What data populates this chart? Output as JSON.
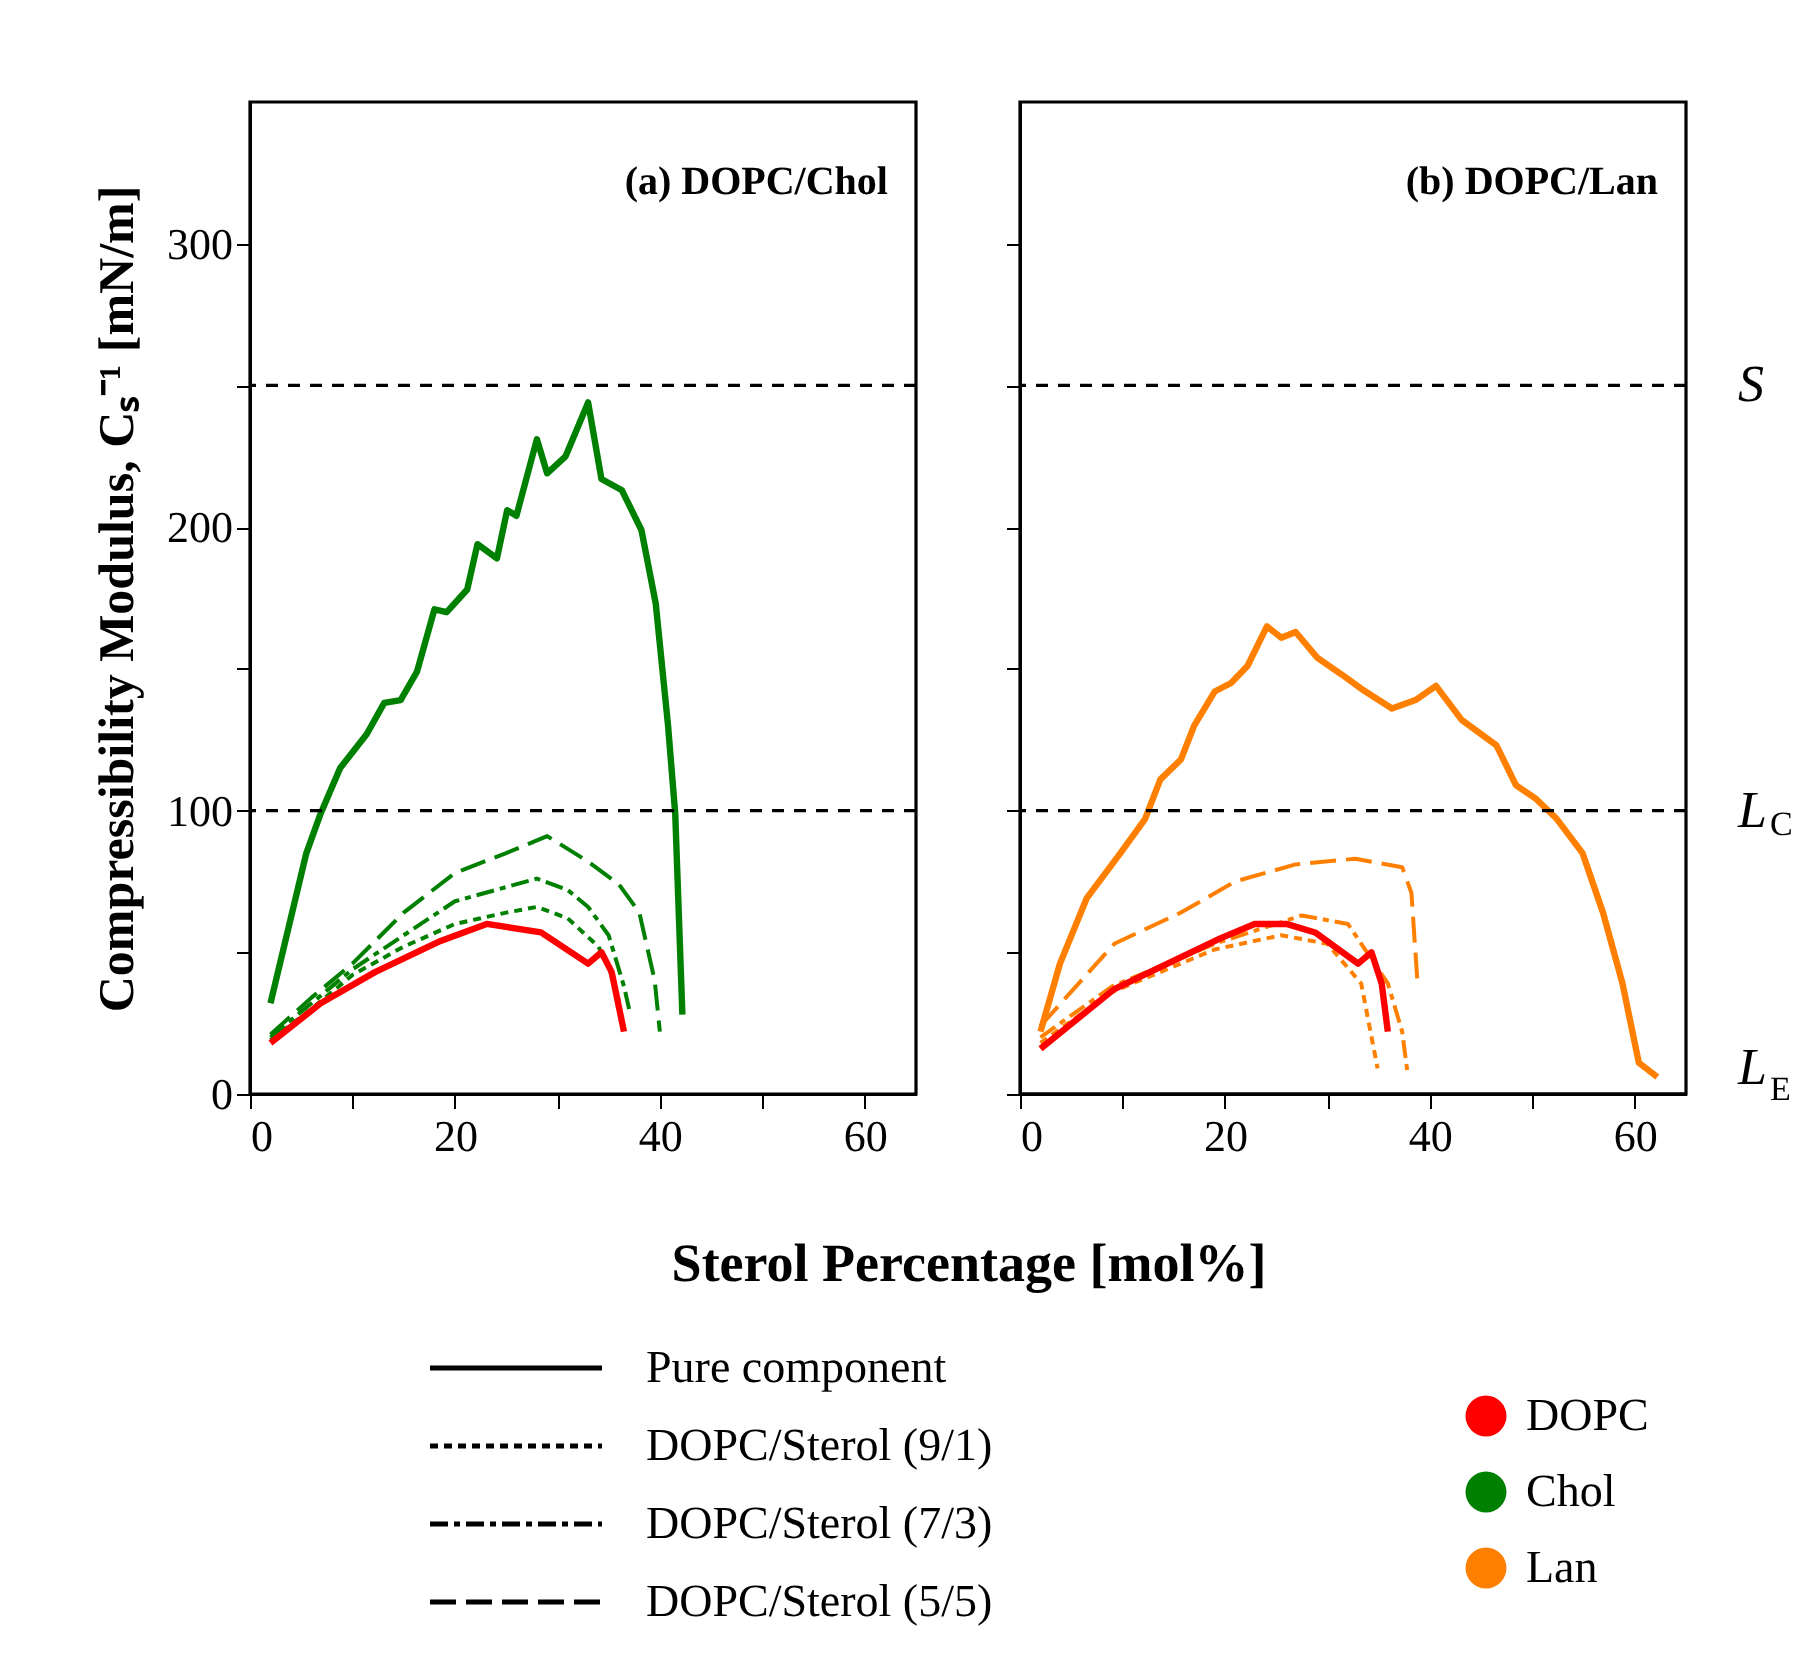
{
  "chart_data": [
    {
      "type": "line",
      "title": "(a) DOPC/Chol",
      "xlabel": "Sterol Percentage [mol%]",
      "ylabel": "Compressibility Modulus, Cₛ⁻¹ [mN/m]",
      "xlim": [
        0,
        65
      ],
      "xticks": [
        0,
        {
          "value": 10,
          "label": null
        },
        20,
        {
          "value": 30,
          "label": null
        },
        40,
        {
          "value": 50,
          "label": null
        },
        60
      ],
      "ylim": [
        0,
        350
      ],
      "yticks": [
        0,
        {
          "value": 50,
          "label": null
        },
        100,
        {
          "value": 150,
          "label": null
        },
        200,
        {
          "value": 250,
          "label": null
        },
        300
      ],
      "grid": false,
      "legend": "bottom",
      "marker": "none",
      "annotations": [
        "Pure component",
        "DOPC/Sterol (9/1)",
        "DOPC/Sterol (7/3)",
        "DOPC/Sterol (5/5)"
      ],
      "ref_lines": [
        {
          "axis": "y",
          "value": 250,
          "line_style": "dashed"
        },
        {
          "axis": "y",
          "value": 100,
          "line_style": "dashed"
        }
      ],
      "series": [
        {
          "name": "DOPC",
          "color": "#ff0000",
          "line_style": "solid",
          "x": [
            2,
            6.9,
            12.2,
            18.6,
            23.1,
            28.4,
            33,
            34.3,
            35.3,
            36.5
          ],
          "values": [
            18,
            32,
            43,
            54,
            60,
            57,
            46,
            50,
            43,
            22
          ]
        },
        {
          "name": "Chol",
          "color": "#008000",
          "line_style": "solid",
          "x": [
            2,
            5.5,
            6.9,
            8.8,
            11.4,
            13.1,
            14.7,
            16.3,
            18,
            19.2,
            21.2,
            22.2,
            24.1,
            25.1,
            26,
            28,
            29,
            30.8,
            33,
            34.3,
            36.3,
            38.2,
            39.6,
            40.8,
            41.5,
            42.2
          ],
          "values": [
            32,
            85,
            99,
            115,
            127,
            138,
            139,
            149,
            171,
            170,
            178,
            194,
            189,
            206,
            204,
            231,
            219,
            225,
            244,
            217,
            213,
            199,
            173,
            130,
            99,
            28
          ]
        },
        {
          "color": "#008000",
          "line_style": "dotted",
          "x": [
            2,
            6,
            10,
            15,
            20,
            25,
            28,
            31,
            34,
            35,
            36
          ],
          "values": [
            19,
            30,
            42,
            52,
            60,
            64,
            66,
            62,
            52,
            45,
            33
          ]
        },
        {
          "color": "#008000",
          "line_style": "dashed",
          "x": [
            2,
            6,
            10,
            15,
            20,
            25,
            28,
            31,
            33,
            35,
            36.5,
            37
          ],
          "values": [
            20,
            32,
            44,
            56,
            68,
            73,
            76,
            72,
            66,
            56,
            38,
            30
          ]
        },
        {
          "color": "#008000",
          "line_style": "dashed",
          "x": [
            2,
            6,
            10,
            15,
            20,
            25,
            29,
            33,
            36,
            38,
            39.5,
            40
          ],
          "values": [
            21,
            34,
            46,
            64,
            78,
            85,
            91,
            82,
            74,
            64,
            40,
            22
          ]
        }
      ]
    },
    {
      "type": "line",
      "title": "(b) DOPC/Lan",
      "xlim": [
        0,
        65
      ],
      "xticks": [
        0,
        {
          "value": 10,
          "label": null
        },
        20,
        {
          "value": 30,
          "label": null
        },
        40,
        {
          "value": 50,
          "label": null
        },
        60
      ],
      "ylim": [
        0,
        350
      ],
      "yticks": [
        0,
        {
          "value": 50,
          "label": null
        },
        100,
        {
          "value": 150,
          "label": null
        },
        200,
        {
          "value": 250,
          "label": null
        },
        300
      ],
      "tick_labels": "x",
      "grid": false,
      "legend": "bottom",
      "marker": "none",
      "ref_lines": [
        {
          "axis": "y",
          "value": 250,
          "label": "S",
          "line_style": "dashed"
        },
        {
          "axis": "y",
          "value": 100,
          "label": "L$_{C}$",
          "line_style": "dashed"
        },
        {
          "axis": "y",
          "value": 0,
          "label": "L$_{E}$",
          "line_style": "solid"
        }
      ],
      "series": [
        {
          "name": "DOPC",
          "color": "#ff0000",
          "line_style": "solid",
          "x": [
            2,
            9.2,
            19.6,
            22.9,
            26,
            28.8,
            33,
            34.3,
            35.3,
            35.9
          ],
          "values": [
            16,
            37,
            55,
            60,
            60,
            57,
            46,
            50,
            39,
            22
          ]
        },
        {
          "name": "Lan",
          "color": "#ff8000",
          "line_style": "solid",
          "x": [
            2,
            3.9,
            6.5,
            9.8,
            12.2,
            13.7,
            15.7,
            17,
            19,
            20.6,
            22.2,
            24.1,
            25.5,
            26.9,
            29,
            31.4,
            33.3,
            36.3,
            38.6,
            40.6,
            43.1,
            46.5,
            48.4,
            50.4,
            52.4,
            54.9,
            56.9,
            58.8,
            60.4,
            62.2
          ],
          "values": [
            22,
            46,
            69,
            85,
            97,
            111,
            118,
            130,
            142,
            145,
            151,
            165,
            161,
            163,
            154,
            148,
            143,
            136,
            139,
            144,
            132,
            123,
            109,
            104,
            97,
            85,
            64,
            39,
            11,
            6
          ]
        },
        {
          "color": "#ff8000",
          "line_style": "dotted",
          "x": [
            2,
            9,
            19,
            25.5,
            30,
            33.3,
            34.9
          ],
          "values": [
            18,
            36,
            51,
            56,
            53,
            39,
            9
          ]
        },
        {
          "color": "#ff8000",
          "line_style": "dashed",
          "x": [
            2,
            9,
            19,
            27.5,
            32,
            35.9,
            37.3,
            37.8
          ],
          "values": [
            20,
            38,
            53,
            63,
            60,
            39,
            22,
            8
          ]
        },
        {
          "color": "#ff8000",
          "line_style": "dashed",
          "x": [
            2,
            9.2,
            15.7,
            21,
            26.9,
            32.7,
            37.3,
            38.2,
            38.8
          ],
          "values": [
            24,
            53,
            64,
            75,
            81,
            83,
            80,
            71,
            39
          ]
        }
      ]
    }
  ]
}
